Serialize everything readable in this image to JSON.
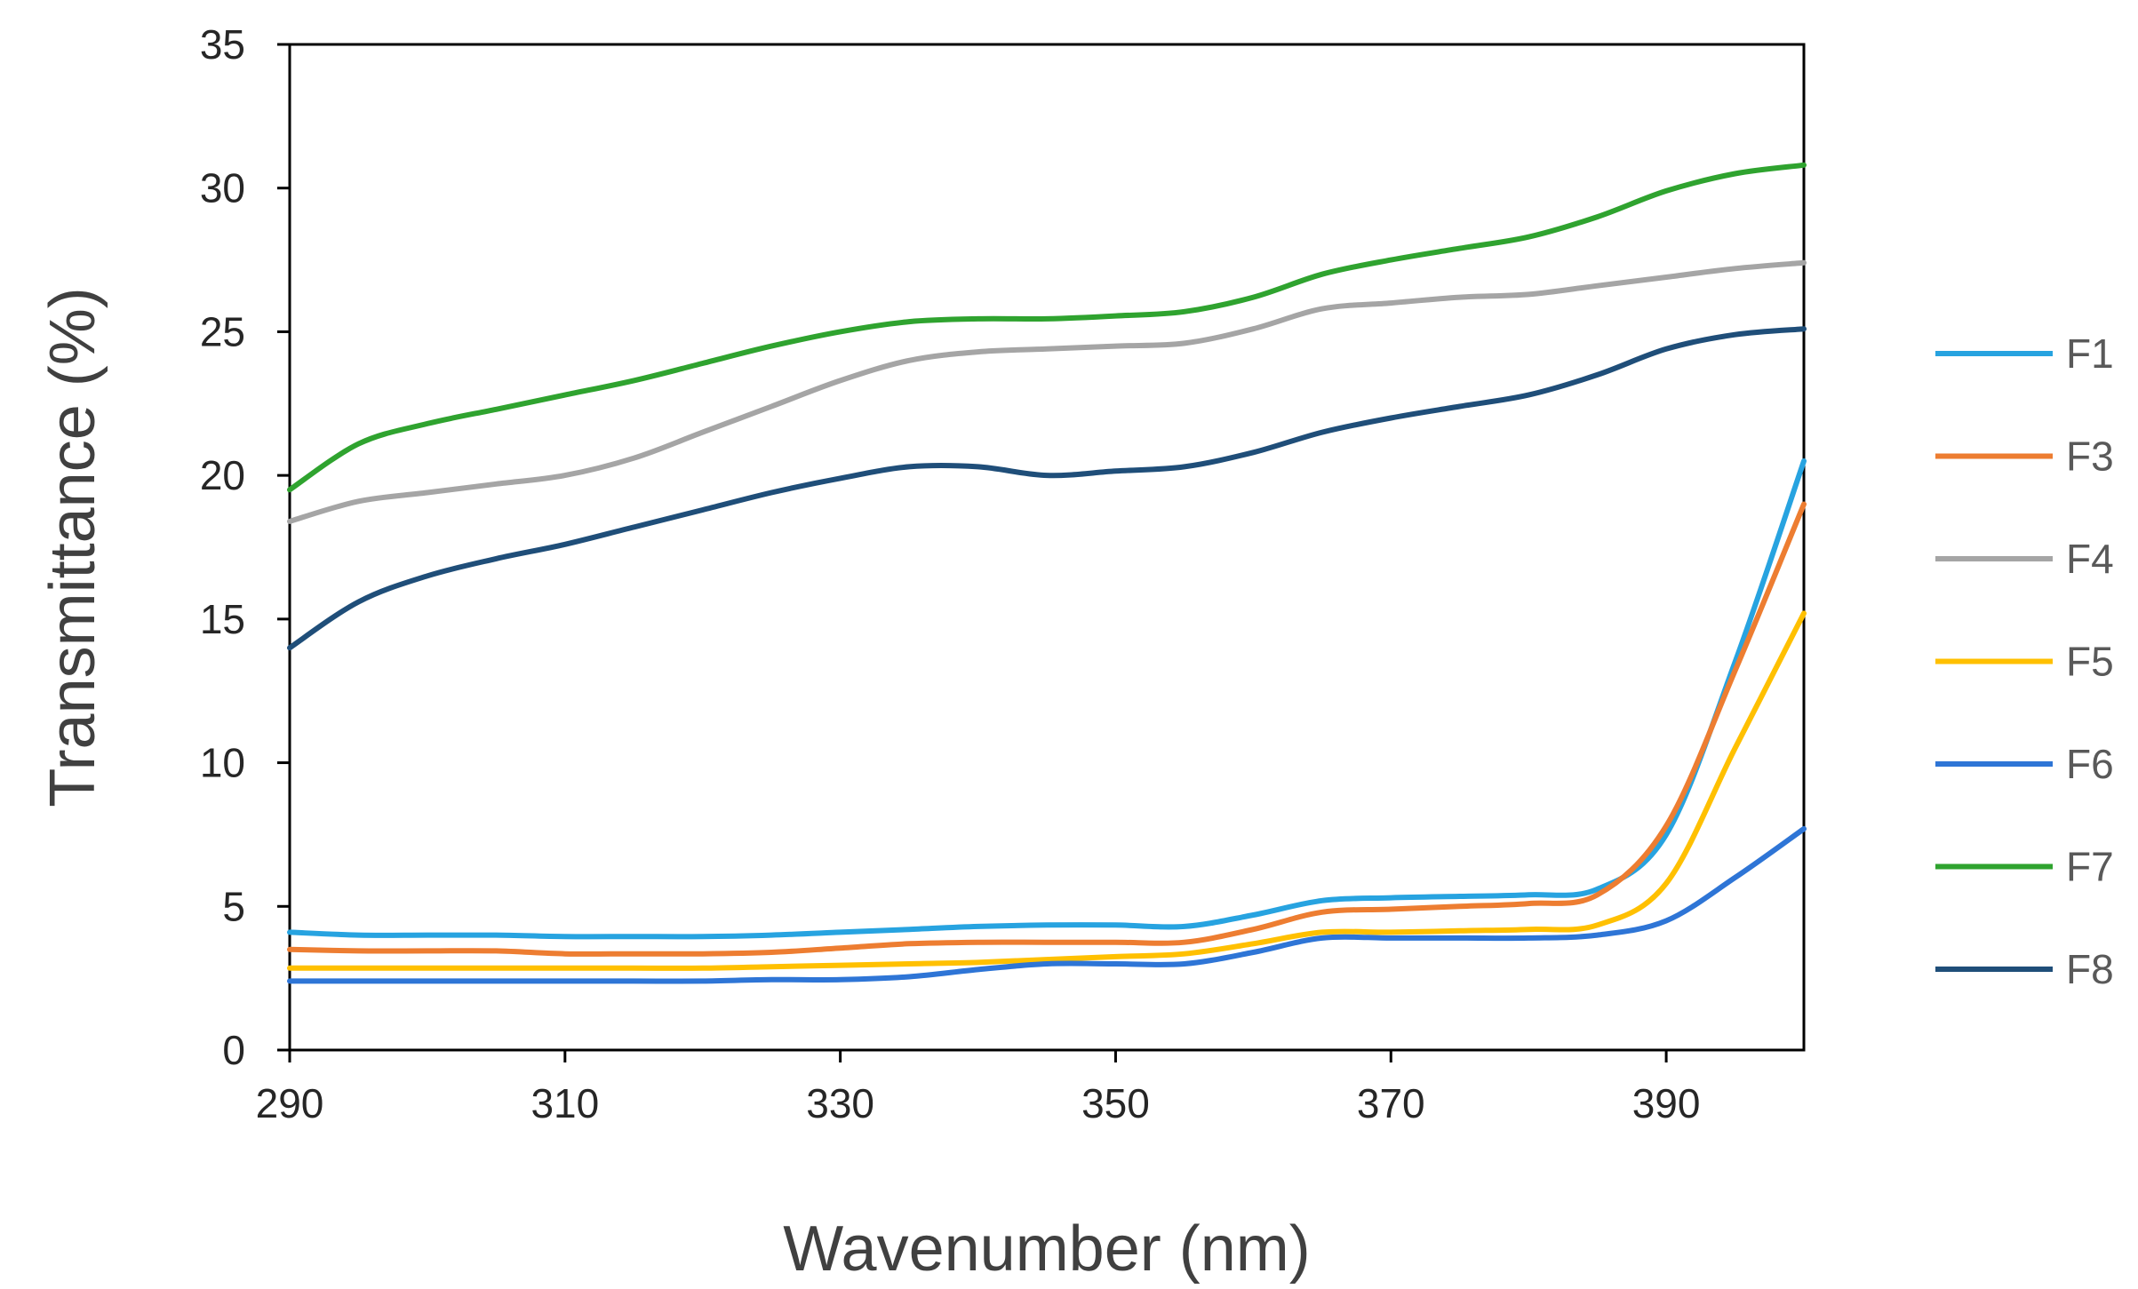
{
  "chart_data": {
    "type": "line",
    "title": "",
    "xlabel": "Wavenumber (nm)",
    "ylabel": "Transmittance (%)",
    "xlim": [
      290,
      400
    ],
    "ylim": [
      0,
      35
    ],
    "xticks": [
      290,
      310,
      330,
      350,
      370,
      390
    ],
    "yticks": [
      0,
      5,
      10,
      15,
      20,
      25,
      30,
      35
    ],
    "grid": false,
    "legend_position": "right",
    "x": [
      290,
      295,
      300,
      305,
      310,
      315,
      320,
      325,
      330,
      335,
      340,
      345,
      350,
      355,
      360,
      365,
      370,
      375,
      380,
      385,
      390,
      395,
      400
    ],
    "series": [
      {
        "name": "F1",
        "color": "#27A3E0",
        "values": [
          4.1,
          4.0,
          4.0,
          4.0,
          3.95,
          3.95,
          3.95,
          4.0,
          4.1,
          4.2,
          4.3,
          4.35,
          4.35,
          4.3,
          4.7,
          5.2,
          5.3,
          5.35,
          5.4,
          5.6,
          7.5,
          13.5,
          20.5
        ]
      },
      {
        "name": "F3",
        "color": "#ED7D31",
        "values": [
          3.5,
          3.45,
          3.45,
          3.45,
          3.35,
          3.35,
          3.35,
          3.4,
          3.55,
          3.7,
          3.75,
          3.75,
          3.75,
          3.75,
          4.2,
          4.8,
          4.9,
          5.0,
          5.1,
          5.4,
          7.8,
          13.2,
          19.0
        ]
      },
      {
        "name": "F4",
        "color": "#A5A5A5",
        "values": [
          18.4,
          19.1,
          19.4,
          19.7,
          20.0,
          20.6,
          21.5,
          22.4,
          23.3,
          24.0,
          24.3,
          24.4,
          24.5,
          24.6,
          25.1,
          25.8,
          26.0,
          26.2,
          26.3,
          26.6,
          26.9,
          27.2,
          27.4
        ]
      },
      {
        "name": "F5",
        "color": "#FFC000",
        "values": [
          2.85,
          2.85,
          2.85,
          2.85,
          2.85,
          2.85,
          2.85,
          2.9,
          2.95,
          3.0,
          3.05,
          3.15,
          3.25,
          3.35,
          3.7,
          4.1,
          4.1,
          4.15,
          4.2,
          4.35,
          5.8,
          10.5,
          15.2
        ]
      },
      {
        "name": "F6",
        "color": "#2E75D6",
        "values": [
          2.4,
          2.4,
          2.4,
          2.4,
          2.4,
          2.4,
          2.4,
          2.45,
          2.45,
          2.55,
          2.8,
          3.0,
          3.0,
          3.0,
          3.4,
          3.9,
          3.9,
          3.9,
          3.9,
          4.0,
          4.5,
          6.0,
          7.7
        ]
      },
      {
        "name": "F7",
        "color": "#2FA32F",
        "values": [
          19.5,
          21.1,
          21.8,
          22.3,
          22.8,
          23.3,
          23.9,
          24.5,
          25.0,
          25.35,
          25.45,
          25.45,
          25.55,
          25.7,
          26.2,
          27.0,
          27.5,
          27.9,
          28.3,
          29.0,
          29.9,
          30.5,
          30.8
        ]
      },
      {
        "name": "F8",
        "color": "#1F4E79",
        "values": [
          14.0,
          15.6,
          16.5,
          17.1,
          17.6,
          18.2,
          18.8,
          19.4,
          19.9,
          20.3,
          20.3,
          20.0,
          20.15,
          20.3,
          20.8,
          21.5,
          22.0,
          22.4,
          22.8,
          23.5,
          24.4,
          24.9,
          25.1
        ]
      }
    ]
  }
}
